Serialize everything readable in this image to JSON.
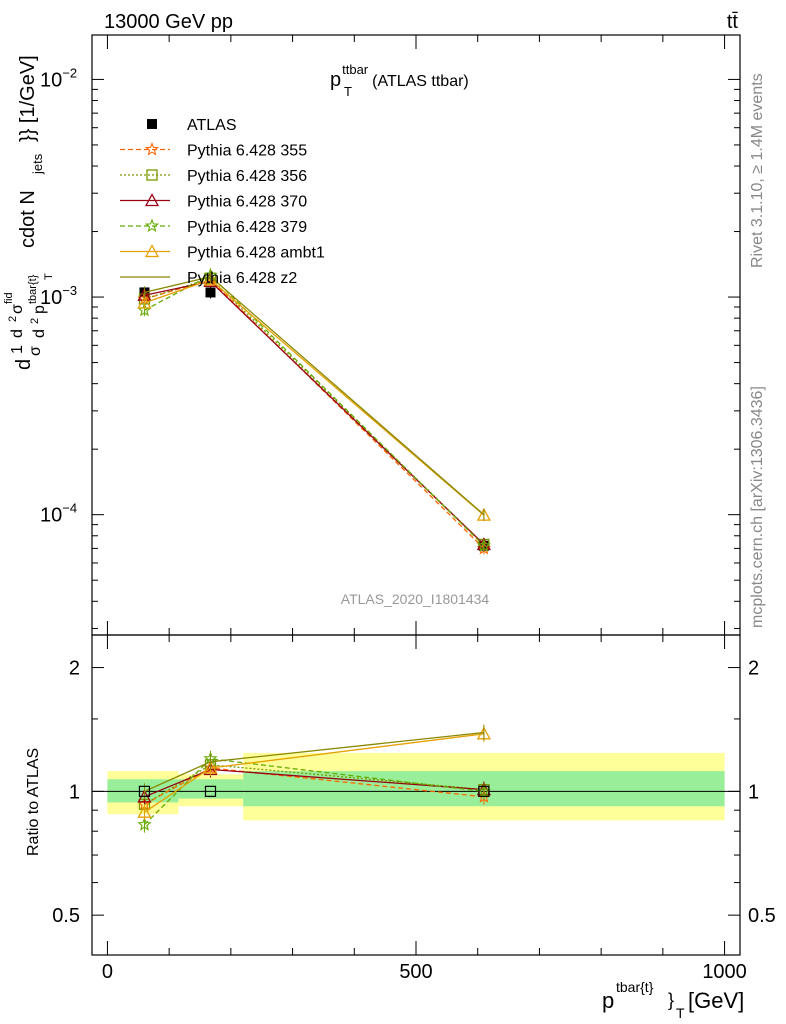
{
  "header": {
    "left": "13000 GeV pp",
    "right": "tt̄"
  },
  "side_labels": {
    "rivet": "Rivet 3.1.10, ≥ 1.4M events",
    "mcplots": "mcplots.cern.ch [arXiv:1306.3436]"
  },
  "plot_title": {
    "main": "p",
    "sup": "ttbar",
    "sub": "T",
    "rest": "(ATLAS ttbar)"
  },
  "analysis_id": "ATLAS_2020_I1801434",
  "upper_ylabel": {
    "prefix": "d",
    "frac_num": "1",
    "frac_den": "σ",
    "d2sigma_num": "d",
    "d2sigma_den": "d",
    "sigma_sup": "fid",
    "sup2": "2",
    "pt_sup": "tbar{t}",
    "pt_sub": "T",
    "rest": "cdot N",
    "jets_sub": "jets",
    "tail": "}} [1/GeV]"
  },
  "ratio_ylabel": "Ratio to ATLAS",
  "xlabel": {
    "p": "p",
    "sup": "tbar{t}",
    "close": "}",
    "sub": "T",
    "unit": "[GeV]"
  },
  "chart_data": [
    {
      "type": "line",
      "panel": "main",
      "yscale": "log",
      "ylim": [
        2.8e-05,
        0.016
      ],
      "xlim": [
        -25,
        1025
      ],
      "y_tick_labels": [
        {
          "base": "10",
          "exp": "−2",
          "value": 0.01
        },
        {
          "base": "10",
          "exp": "−3",
          "value": 0.001
        },
        {
          "base": "10",
          "exp": "−4",
          "value": 0.0001
        }
      ],
      "x": [
        60,
        167,
        610
      ],
      "series": [
        {
          "name": "ATLAS",
          "marker": "square",
          "color": "#000000",
          "dash": "none",
          "values": [
            0.00105,
            0.00105,
            7.2e-05
          ]
        },
        {
          "name": "Pythia 6.428 355",
          "marker": "star",
          "color": "#ff6600",
          "dash": "5,3",
          "values": [
            0.00098,
            0.0012,
            7e-05
          ]
        },
        {
          "name": "Pythia 6.428 356",
          "marker": "square-open",
          "color": "#779900",
          "dash": "2,2",
          "values": [
            0.00098,
            0.00122,
            7.3e-05
          ]
        },
        {
          "name": "Pythia 6.428 370",
          "marker": "triangle-open",
          "color": "#990011",
          "dash": "none",
          "values": [
            0.00102,
            0.00118,
            7.3e-05
          ]
        },
        {
          "name": "Pythia 6.428 379",
          "marker": "star",
          "color": "#66aa00",
          "dash": "5,3",
          "values": [
            0.00087,
            0.00126,
            7.2e-05
          ]
        },
        {
          "name": "Pythia 6.428 ambt1",
          "marker": "triangle-open",
          "color": "#e6a000",
          "dash": "none",
          "values": [
            0.00094,
            0.0012,
            9.95e-05
          ]
        },
        {
          "name": "Pythia 6.428 z2",
          "marker": "none",
          "color": "#888800",
          "dash": "none",
          "values": [
            0.00105,
            0.00124,
            0.0001
          ]
        }
      ],
      "legend_position": "top-left"
    },
    {
      "type": "line",
      "panel": "ratio",
      "yscale": "log",
      "ylim": [
        0.4,
        2.4
      ],
      "y_ticks": [
        {
          "label": "0.5",
          "value": 0.5
        },
        {
          "label": "1",
          "value": 1
        },
        {
          "label": "2",
          "value": 2
        }
      ],
      "x_ticks": [
        {
          "label": "0",
          "value": 0
        },
        {
          "label": "500",
          "value": 500
        },
        {
          "label": "1000",
          "value": 1000
        }
      ],
      "xlim": [
        -25,
        1025
      ],
      "x": [
        60,
        167,
        610
      ],
      "bands": [
        {
          "x0": 0,
          "x1": 115,
          "yellow": [
            0.88,
            1.12
          ],
          "green": [
            0.94,
            1.07
          ]
        },
        {
          "x0": 115,
          "x1": 220,
          "yellow": [
            0.92,
            1.1
          ],
          "green": [
            0.96,
            1.07
          ]
        },
        {
          "x0": 220,
          "x1": 1000,
          "yellow": [
            0.85,
            1.24
          ],
          "green": [
            0.92,
            1.12
          ]
        }
      ],
      "series": [
        {
          "name": "Pythia 6.428 355",
          "values": [
            0.93,
            1.14,
            0.97
          ]
        },
        {
          "name": "Pythia 6.428 356",
          "values": [
            0.93,
            1.16,
            1.01
          ]
        },
        {
          "name": "Pythia 6.428 370",
          "values": [
            0.97,
            1.13,
            1.01
          ]
        },
        {
          "name": "Pythia 6.428 379",
          "values": [
            0.83,
            1.2,
            1.0
          ]
        },
        {
          "name": "Pythia 6.428 ambt1",
          "values": [
            0.89,
            1.14,
            1.38
          ]
        },
        {
          "name": "Pythia 6.428 z2",
          "values": [
            1.0,
            1.18,
            1.39
          ]
        }
      ]
    }
  ]
}
